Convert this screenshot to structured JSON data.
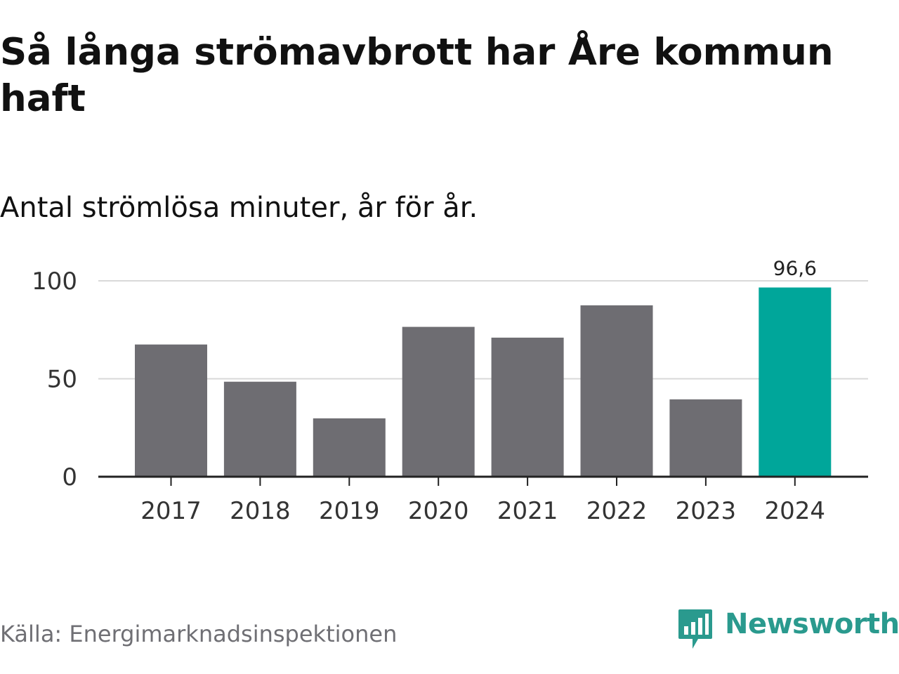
{
  "title": "Så långa strömavbrott har Åre kommun haft",
  "subtitle": "Antal strömlösa minuter, år för år.",
  "source": "Källa: Energimarknadsinspektionen",
  "logo": {
    "text": "Newsworthy",
    "icon": "bar-chart-speech-bubble-icon",
    "color": "#2a9a8e"
  },
  "chart_data": {
    "type": "bar",
    "categories": [
      "2017",
      "2018",
      "2019",
      "2020",
      "2021",
      "2022",
      "2023",
      "2024"
    ],
    "values": [
      67.5,
      48.5,
      29.8,
      76.5,
      71,
      87.5,
      39.5,
      96.6
    ],
    "value_labels": [
      "",
      "",
      "",
      "",
      "",
      "",
      "",
      "96,6"
    ],
    "ylim": [
      0,
      100
    ],
    "yticks": [
      0,
      50,
      100
    ],
    "xlabel": "",
    "ylabel": "",
    "grid": true,
    "colors": {
      "default": "#6e6d72",
      "highlight": "#00a69a",
      "grid": "#d9d9d9",
      "axis": "#222222"
    },
    "highlight_index": 7
  }
}
